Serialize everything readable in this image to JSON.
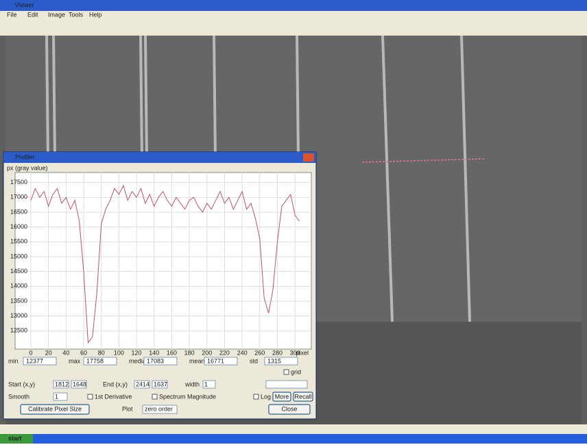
{
  "window": {
    "title": "Viewer",
    "menu": [
      "File",
      "Edit",
      "Image",
      "Tools",
      "Help"
    ]
  },
  "dialog": {
    "title": "Profiler",
    "stats": [
      {
        "label": "min",
        "value": "12377"
      },
      {
        "label": "max",
        "value": "17758"
      },
      {
        "label": "median",
        "value": "17083"
      },
      {
        "label": "mean",
        "value": "16771"
      },
      {
        "label": "std",
        "value": "1315"
      }
    ],
    "start_label": "Start (x,y)",
    "start": [
      "1812",
      "1648"
    ],
    "end_label": "End (x,y)",
    "end": [
      "2414",
      "1637"
    ],
    "width_label": "width",
    "width": "1",
    "smooth_label": "Smooth",
    "smooth": "1",
    "derivative": "1st Derivative",
    "spectrum": "Spectrum Magnitude",
    "log_y": "Log Y",
    "more": "More",
    "recall": "Recall",
    "calibrate": "Calibrate Pixel Size",
    "plot_label": "Plot",
    "plot_mode": "zero order",
    "close": "Close",
    "grid": "grid"
  },
  "chart_data": {
    "type": "line",
    "ylabel": "px (gray value)",
    "xlabel": "pixel",
    "x": [
      0,
      5,
      10,
      15,
      20,
      25,
      30,
      35,
      40,
      45,
      50,
      55,
      60,
      65,
      70,
      75,
      80,
      85,
      90,
      95,
      100,
      105,
      110,
      115,
      120,
      125,
      130,
      135,
      140,
      145,
      150,
      155,
      160,
      165,
      170,
      175,
      180,
      185,
      190,
      195,
      200,
      205,
      210,
      215,
      220,
      225,
      230,
      235,
      240,
      245,
      250,
      255,
      260,
      265,
      270,
      275,
      280,
      285,
      290,
      295,
      300,
      305
    ],
    "series": [
      {
        "color": "#c0506a",
        "values": [
          16900,
          17300,
          17000,
          17200,
          16700,
          17100,
          17300,
          16800,
          17000,
          16600,
          16900,
          16200,
          14500,
          12100,
          12300,
          13800,
          16100,
          16600,
          16900,
          17300,
          17100,
          17400,
          16900,
          17200,
          17000,
          17300,
          16800,
          17100,
          16700,
          17000,
          17200,
          16900,
          16700,
          17000,
          16800,
          16600,
          16900,
          17000,
          16700,
          16500,
          16800,
          16600,
          16900,
          17200,
          16800,
          17000,
          16600,
          16900,
          17200,
          16600,
          16800,
          16300,
          15600,
          13600,
          13100,
          13900,
          15500,
          16700,
          16900,
          17100,
          16400,
          16200
        ]
      }
    ],
    "xlim": [
      0,
      310
    ],
    "ylim": [
      12000,
      17700
    ],
    "xticks": [
      0,
      20,
      40,
      60,
      80,
      100,
      120,
      140,
      160,
      180,
      200,
      220,
      240,
      260,
      280,
      300
    ],
    "yticks": [
      12500,
      13000,
      13500,
      14000,
      14500,
      15000,
      15500,
      16000,
      16500,
      17000,
      17500
    ],
    "grid": true
  },
  "taskbar": {
    "start": "start"
  }
}
